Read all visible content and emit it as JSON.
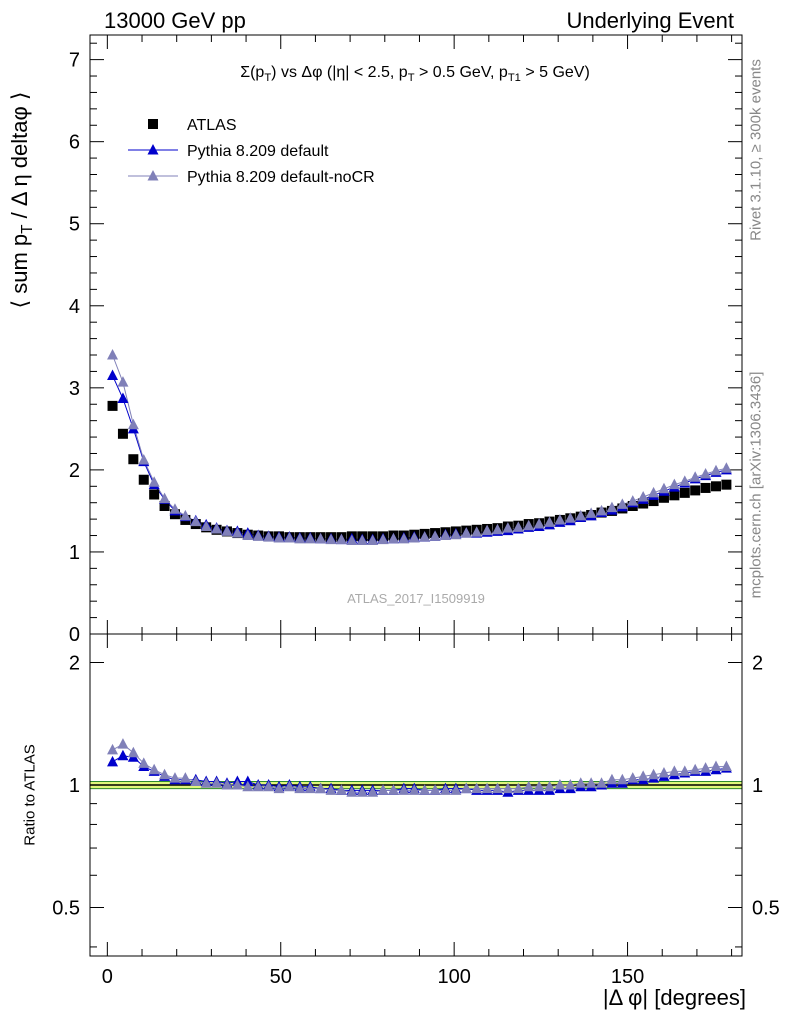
{
  "header": {
    "left": "13000 GeV pp",
    "right": "Underlying Event"
  },
  "side_text": {
    "rivet": "Rivet 3.1.10, ≥ 300k events",
    "mcplots": "mcplots.cern.ch [arXiv:1306.3436]"
  },
  "analysis_id": "ATLAS_2017_I1509919",
  "colors": {
    "atlas": "#000000",
    "default": "#0000cc",
    "nocr": "#8080b8",
    "band_fill": "#dff77a",
    "band_edge": "#2e8b2e"
  },
  "chart_data": [
    {
      "type": "scatter",
      "title": "Σ(pT) vs Δφ (|η| < 2.5, pT > 0.5 GeV, pT1 > 5 GeV)",
      "title_parts": {
        "t1": "Σ(p",
        "t1s": "T",
        "t2": ") vs Δφ (|η| < 2.5, p",
        "t2s": "T",
        "t3": " > 0.5 GeV, p",
        "t3s": "T1",
        "t4": " > 5 GeV)"
      },
      "ylabel": "⟨ sum pT / Δ η deltaφ ⟩",
      "ylabel_parts": {
        "a": "⟨ sum p",
        "s": "T",
        "b": " / Δ η deltaφ ⟩"
      },
      "xlim": [
        -5,
        183
      ],
      "ylim": [
        0,
        7.3
      ],
      "y_ticks": [
        "0",
        "1",
        "2",
        "3",
        "4",
        "5",
        "6",
        "7"
      ],
      "x_ticks": [
        "0",
        "50",
        "100",
        "150"
      ],
      "legend_position": "top-left",
      "x": [
        1.5,
        4.5,
        7.5,
        10.5,
        13.5,
        16.5,
        19.5,
        22.5,
        25.5,
        28.5,
        31.5,
        34.5,
        37.5,
        40.5,
        43.5,
        46.5,
        49.5,
        52.5,
        55.5,
        58.5,
        61.5,
        64.5,
        67.5,
        70.5,
        73.5,
        76.5,
        79.5,
        82.5,
        85.5,
        88.5,
        91.5,
        94.5,
        97.5,
        100.5,
        103.5,
        106.5,
        109.5,
        112.5,
        115.5,
        118.5,
        121.5,
        124.5,
        127.5,
        130.5,
        133.5,
        136.5,
        139.5,
        142.5,
        145.5,
        148.5,
        151.5,
        154.5,
        157.5,
        160.5,
        163.5,
        166.5,
        169.5,
        172.5,
        175.5,
        178.5
      ],
      "series": [
        {
          "name": "ATLAS",
          "marker": "square",
          "values": [
            2.78,
            2.44,
            2.13,
            1.88,
            1.7,
            1.56,
            1.46,
            1.39,
            1.34,
            1.3,
            1.27,
            1.25,
            1.23,
            1.21,
            1.2,
            1.19,
            1.19,
            1.18,
            1.18,
            1.18,
            1.18,
            1.18,
            1.18,
            1.19,
            1.19,
            1.19,
            1.19,
            1.2,
            1.2,
            1.21,
            1.22,
            1.23,
            1.24,
            1.25,
            1.26,
            1.27,
            1.28,
            1.29,
            1.31,
            1.32,
            1.34,
            1.35,
            1.37,
            1.39,
            1.41,
            1.43,
            1.45,
            1.48,
            1.5,
            1.53,
            1.56,
            1.59,
            1.62,
            1.66,
            1.69,
            1.72,
            1.75,
            1.78,
            1.8,
            1.82
          ]
        },
        {
          "name": "Pythia 8.209 default",
          "marker": "triangle",
          "values": [
            3.15,
            2.87,
            2.5,
            2.1,
            1.82,
            1.64,
            1.5,
            1.43,
            1.38,
            1.33,
            1.29,
            1.26,
            1.25,
            1.23,
            1.2,
            1.19,
            1.18,
            1.18,
            1.17,
            1.17,
            1.16,
            1.16,
            1.15,
            1.16,
            1.15,
            1.15,
            1.16,
            1.16,
            1.17,
            1.18,
            1.18,
            1.19,
            1.21,
            1.22,
            1.23,
            1.23,
            1.24,
            1.25,
            1.26,
            1.28,
            1.3,
            1.31,
            1.33,
            1.36,
            1.38,
            1.42,
            1.44,
            1.48,
            1.51,
            1.55,
            1.6,
            1.64,
            1.69,
            1.74,
            1.79,
            1.84,
            1.89,
            1.93,
            1.97,
            2.0
          ]
        },
        {
          "name": "Pythia 8.209 default-noCR",
          "marker": "triangle",
          "values": [
            3.4,
            3.07,
            2.55,
            2.12,
            1.85,
            1.65,
            1.52,
            1.44,
            1.37,
            1.31,
            1.28,
            1.25,
            1.23,
            1.2,
            1.19,
            1.18,
            1.17,
            1.17,
            1.16,
            1.16,
            1.16,
            1.15,
            1.15,
            1.14,
            1.14,
            1.14,
            1.15,
            1.16,
            1.16,
            1.17,
            1.18,
            1.19,
            1.2,
            1.21,
            1.23,
            1.24,
            1.26,
            1.27,
            1.29,
            1.3,
            1.32,
            1.34,
            1.36,
            1.39,
            1.41,
            1.44,
            1.47,
            1.5,
            1.54,
            1.58,
            1.62,
            1.67,
            1.72,
            1.77,
            1.82,
            1.86,
            1.91,
            1.95,
            1.99,
            2.02
          ]
        }
      ]
    },
    {
      "type": "line",
      "ylabel": "Ratio to ATLAS",
      "xlabel": "|Δ φ| [degrees]",
      "xlim": [
        -5,
        183
      ],
      "ylim": [
        0.38,
        2.35
      ],
      "y_scale": "log",
      "y_ticks": [
        "0.5",
        "1",
        "2"
      ],
      "reference_band": [
        0.98,
        1.02
      ],
      "series": [
        {
          "name": "Pythia 8.209 default",
          "values": [
            1.14,
            1.18,
            1.17,
            1.11,
            1.08,
            1.05,
            1.03,
            1.03,
            1.03,
            1.02,
            1.02,
            1.01,
            1.02,
            1.02,
            1.0,
            1.0,
            0.99,
            1.0,
            0.99,
            0.99,
            0.98,
            0.98,
            0.97,
            0.97,
            0.97,
            0.97,
            0.97,
            0.97,
            0.98,
            0.98,
            0.97,
            0.97,
            0.98,
            0.98,
            0.98,
            0.97,
            0.97,
            0.97,
            0.96,
            0.97,
            0.97,
            0.97,
            0.97,
            0.98,
            0.98,
            0.99,
            0.99,
            1.0,
            1.01,
            1.01,
            1.03,
            1.03,
            1.04,
            1.05,
            1.06,
            1.07,
            1.08,
            1.08,
            1.09,
            1.1
          ]
        },
        {
          "name": "Pythia 8.209 default-noCR",
          "values": [
            1.22,
            1.26,
            1.2,
            1.13,
            1.09,
            1.06,
            1.04,
            1.04,
            1.02,
            1.01,
            1.01,
            1.0,
            1.0,
            0.99,
            0.99,
            0.99,
            0.98,
            0.99,
            0.98,
            0.98,
            0.98,
            0.97,
            0.97,
            0.96,
            0.96,
            0.96,
            0.97,
            0.97,
            0.97,
            0.97,
            0.97,
            0.97,
            0.97,
            0.97,
            0.98,
            0.98,
            0.98,
            0.98,
            0.98,
            0.98,
            0.99,
            0.99,
            0.99,
            1.0,
            1.0,
            1.01,
            1.01,
            1.01,
            1.03,
            1.03,
            1.04,
            1.05,
            1.06,
            1.07,
            1.08,
            1.08,
            1.09,
            1.1,
            1.11,
            1.11
          ]
        }
      ]
    }
  ]
}
